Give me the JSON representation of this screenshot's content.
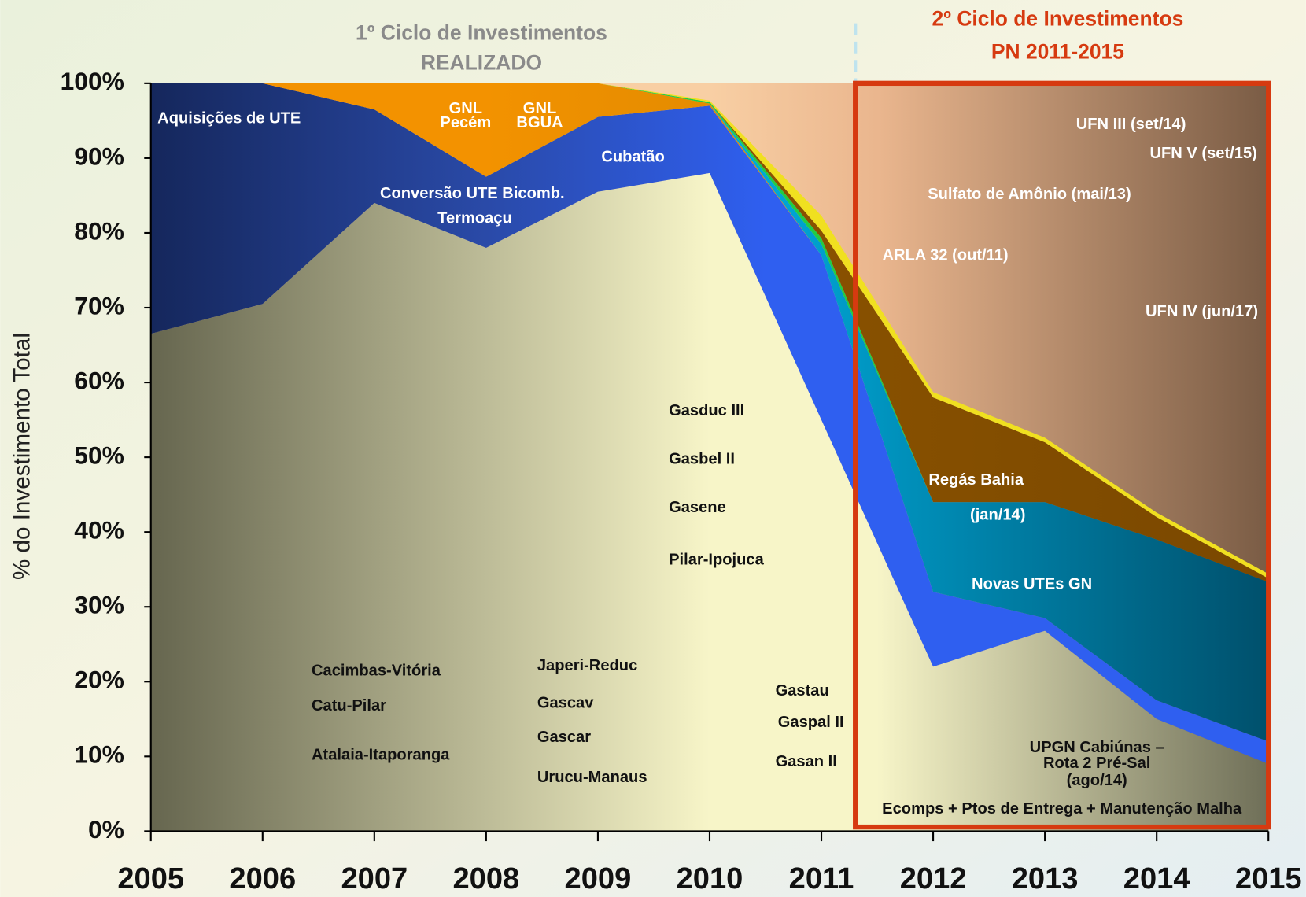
{
  "chart_data": {
    "type": "stacked_area",
    "headers": [
      "1º Ciclo de Investimentos",
      "REALIZADO",
      "2º Ciclo de Investimentos",
      "PN 2011-2015"
    ],
    "y_label": "% do Investimento Total",
    "x": [
      2005,
      2006,
      2007,
      2008,
      2009,
      2010,
      2011,
      2012,
      2013,
      2014,
      2015
    ],
    "xlim": [
      2005,
      2015
    ],
    "xticks": [
      2005,
      2006,
      2007,
      2008,
      2009,
      2010,
      2011,
      2012,
      2013,
      2014,
      2015
    ],
    "ylim": [
      0,
      100
    ],
    "yticks": [
      {
        "value": 0,
        "label": "0%"
      },
      {
        "value": 10,
        "label": "10%"
      },
      {
        "value": 20,
        "label": "20%"
      },
      {
        "value": 30,
        "label": "30%"
      },
      {
        "value": 40,
        "label": "40%"
      },
      {
        "value": 50,
        "label": "50%"
      },
      {
        "value": 60,
        "label": "60%"
      },
      {
        "value": 70,
        "label": "70%"
      },
      {
        "value": 80,
        "label": "80%"
      },
      {
        "value": 90,
        "label": "90%"
      },
      {
        "value": 100,
        "label": "100%"
      }
    ],
    "series": [
      {
        "color": "#f7f5c8",
        "values": [
          66.5,
          70.5,
          84,
          78,
          85.5,
          88,
          55,
          22,
          26.8,
          15,
          9
        ]
      },
      {
        "color": "#2f5ff0",
        "values": [
          33.5,
          29.5,
          12.5,
          9.5,
          10,
          9,
          22,
          10,
          1.7,
          2.5,
          3
        ]
      },
      {
        "color": "#f39200",
        "values": [
          0,
          0,
          3.5,
          12.5,
          4.5,
          0.3,
          0,
          0,
          0,
          0,
          0
        ]
      },
      {
        "color": "#00b4e6",
        "values": [
          0,
          0,
          0,
          0,
          0,
          0,
          1.5,
          12,
          15.5,
          21.5,
          21.3
        ]
      },
      {
        "color": "#22cc44",
        "values": [
          0,
          0,
          0,
          0,
          0,
          0.2,
          0.8,
          0,
          0,
          0,
          0
        ]
      },
      {
        "color": "#9a5a00",
        "values": [
          0,
          0,
          0,
          0,
          0,
          0,
          1,
          14,
          8,
          3,
          0.5
        ]
      },
      {
        "color": "#f0e020",
        "values": [
          0,
          0,
          0,
          0,
          0,
          0.2,
          2,
          0.7,
          0.6,
          0.6,
          0.6
        ]
      }
    ],
    "annotations": [
      "Aquisições de UTE",
      "GNL",
      "Pecém",
      "GNL",
      "BGUA",
      "Cubatão",
      "Conversão UTE Bicomb.",
      "Termoaçu",
      "UFN III (set/14)",
      "UFN V (set/15)",
      "Sulfato de Amônio (mai/13)",
      "ARLA 32 (out/11)",
      "UFN IV (jun/17)",
      "Regás Bahia",
      "(jan/14)",
      "Novas UTEs  GN",
      "Gasduc III",
      "Gasbel II",
      "Gasene",
      "Pilar-Ipojuca",
      "Cacimbas-Vitória",
      "Catu-Pilar",
      "Atalaia-Itaporanga",
      "Japeri-Reduc",
      "Gascav",
      "Gascar",
      "Urucu-Manaus",
      "Gastau",
      "Gaspal II",
      "Gasan II",
      "UPGN Cabiúnas –",
      "Rota 2 Pré-Sal",
      "(ago/14)",
      "Ecomps + Ptos de Entrega + Manutenção Malha"
    ]
  }
}
